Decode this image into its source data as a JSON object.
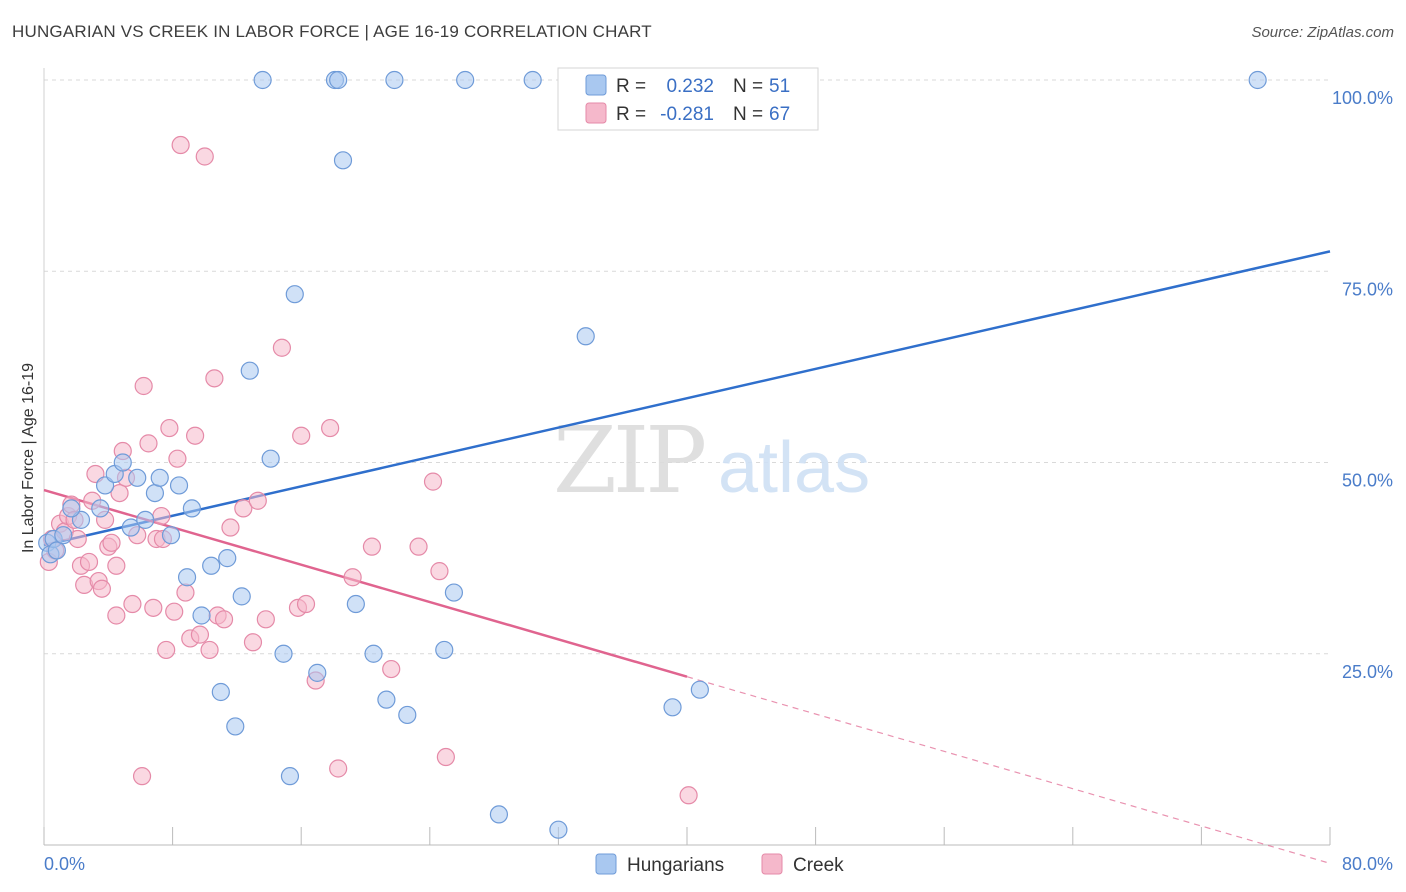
{
  "title": "HUNGARIAN VS CREEK IN LABOR FORCE | AGE 16-19 CORRELATION CHART",
  "source": "Source: ZipAtlas.com",
  "watermark": {
    "zip": "ZIP",
    "atlas": "atlas"
  },
  "colors": {
    "hungarian_fill": "#a9c8f0",
    "hungarian_stroke": "#6f9bd8",
    "hungarian_line": "#2f6fcc",
    "creek_fill": "#f5b8cb",
    "creek_stroke": "#e58aa8",
    "creek_line": "#e0648f",
    "grid": "#d9d9d9",
    "axis_text": "#4a7cc9"
  },
  "legend": {
    "rows": [
      {
        "r_label": "R =",
        "r_value": "0.232",
        "n_label": "N =",
        "n_value": "51"
      },
      {
        "r_label": "R =",
        "r_value": "-0.281",
        "n_label": "N =",
        "n_value": "67"
      }
    ]
  },
  "bottom_legend": [
    "Hungarians",
    "Creek"
  ],
  "chart_data": {
    "type": "scatter",
    "ylabel": "In Labor Force | Age 16-19",
    "xlabel": "",
    "xlim": [
      0,
      80
    ],
    "ylim": [
      0,
      100
    ],
    "x_tick_labels": [
      "0.0%",
      "80.0%"
    ],
    "y_ticks": [
      25,
      50,
      75,
      100
    ],
    "y_tick_labels": [
      "25.0%",
      "50.0%",
      "75.0%",
      "100.0%"
    ],
    "grid": "horizontal-dashed",
    "legend_position": "top-center",
    "series": [
      {
        "name": "Hungarians",
        "r": 0.232,
        "n": 51,
        "trend": {
          "x": [
            0,
            80
          ],
          "y": [
            39.2,
            77.6
          ],
          "style": "solid"
        },
        "points": [
          [
            0.2,
            39.5
          ],
          [
            0.4,
            38
          ],
          [
            0.6,
            40
          ],
          [
            0.8,
            38.5
          ],
          [
            1.2,
            40.5
          ],
          [
            2.3,
            42.5
          ],
          [
            1.7,
            44
          ],
          [
            3.5,
            44
          ],
          [
            3.8,
            47
          ],
          [
            4.4,
            48.5
          ],
          [
            4.9,
            50
          ],
          [
            5.4,
            41.5
          ],
          [
            5.8,
            48
          ],
          [
            6.3,
            42.5
          ],
          [
            6.9,
            46
          ],
          [
            7.2,
            48
          ],
          [
            7.9,
            40.5
          ],
          [
            8.4,
            47
          ],
          [
            8.9,
            35
          ],
          [
            9.2,
            44
          ],
          [
            9.8,
            30
          ],
          [
            10.4,
            36.5
          ],
          [
            11.0,
            20
          ],
          [
            11.4,
            37.5
          ],
          [
            11.9,
            15.5
          ],
          [
            12.3,
            32.5
          ],
          [
            12.8,
            62
          ],
          [
            13.6,
            100
          ],
          [
            14.1,
            50.5
          ],
          [
            14.9,
            25
          ],
          [
            15.3,
            9
          ],
          [
            15.6,
            72
          ],
          [
            17.0,
            22.5
          ],
          [
            18.1,
            100
          ],
          [
            18.3,
            100
          ],
          [
            18.6,
            89.5
          ],
          [
            19.4,
            31.5
          ],
          [
            20.5,
            25
          ],
          [
            21.3,
            19
          ],
          [
            21.8,
            100
          ],
          [
            22.6,
            17
          ],
          [
            24.9,
            25.5
          ],
          [
            25.5,
            33
          ],
          [
            26.2,
            100
          ],
          [
            28.3,
            4
          ],
          [
            30.4,
            100
          ],
          [
            32.0,
            2
          ],
          [
            33.7,
            66.5
          ],
          [
            39.1,
            18
          ],
          [
            40.8,
            20.3
          ],
          [
            75.5,
            100
          ]
        ]
      },
      {
        "name": "Creek",
        "r": -0.281,
        "n": 67,
        "trend": {
          "x": [
            0,
            40
          ],
          "y": [
            46.4,
            22
          ],
          "x_dashed_end": 80,
          "y_dashed_end": -2.4,
          "style": "solid-then-dashed"
        },
        "points": [
          [
            0.3,
            37
          ],
          [
            0.5,
            40
          ],
          [
            0.7,
            38.5
          ],
          [
            1.0,
            42
          ],
          [
            1.3,
            41
          ],
          [
            1.5,
            43
          ],
          [
            1.7,
            44.5
          ],
          [
            1.9,
            42.5
          ],
          [
            2.1,
            40
          ],
          [
            2.3,
            36.5
          ],
          [
            2.5,
            34
          ],
          [
            2.8,
            37
          ],
          [
            3.0,
            45
          ],
          [
            3.2,
            48.5
          ],
          [
            3.4,
            34.5
          ],
          [
            3.6,
            33.5
          ],
          [
            3.8,
            42.5
          ],
          [
            4.0,
            39
          ],
          [
            4.2,
            39.5
          ],
          [
            4.5,
            36.5
          ],
          [
            4.7,
            46
          ],
          [
            4.9,
            51.5
          ],
          [
            5.1,
            48
          ],
          [
            5.5,
            31.5
          ],
          [
            5.8,
            40.5
          ],
          [
            6.1,
            9
          ],
          [
            6.2,
            60
          ],
          [
            6.5,
            52.5
          ],
          [
            6.8,
            31
          ],
          [
            7.0,
            40
          ],
          [
            7.3,
            43
          ],
          [
            7.6,
            25.5
          ],
          [
            7.8,
            54.5
          ],
          [
            8.1,
            30.5
          ],
          [
            8.3,
            50.5
          ],
          [
            8.5,
            91.5
          ],
          [
            8.8,
            33
          ],
          [
            9.1,
            27
          ],
          [
            9.4,
            53.5
          ],
          [
            9.7,
            27.5
          ],
          [
            10.0,
            90
          ],
          [
            10.3,
            25.5
          ],
          [
            10.6,
            61
          ],
          [
            10.8,
            30
          ],
          [
            11.2,
            29.5
          ],
          [
            11.6,
            41.5
          ],
          [
            12.4,
            44
          ],
          [
            13.0,
            26.5
          ],
          [
            13.3,
            45
          ],
          [
            13.8,
            29.5
          ],
          [
            14.8,
            65
          ],
          [
            15.8,
            31
          ],
          [
            16.0,
            53.5
          ],
          [
            16.3,
            31.5
          ],
          [
            16.9,
            21.5
          ],
          [
            17.8,
            54.5
          ],
          [
            18.3,
            10
          ],
          [
            19.2,
            35
          ],
          [
            20.4,
            39
          ],
          [
            21.6,
            23
          ],
          [
            23.3,
            39
          ],
          [
            24.2,
            47.5
          ],
          [
            24.6,
            35.8
          ],
          [
            25.0,
            11.5
          ],
          [
            4.5,
            30
          ],
          [
            7.4,
            40
          ],
          [
            40.1,
            6.5
          ]
        ]
      }
    ]
  }
}
